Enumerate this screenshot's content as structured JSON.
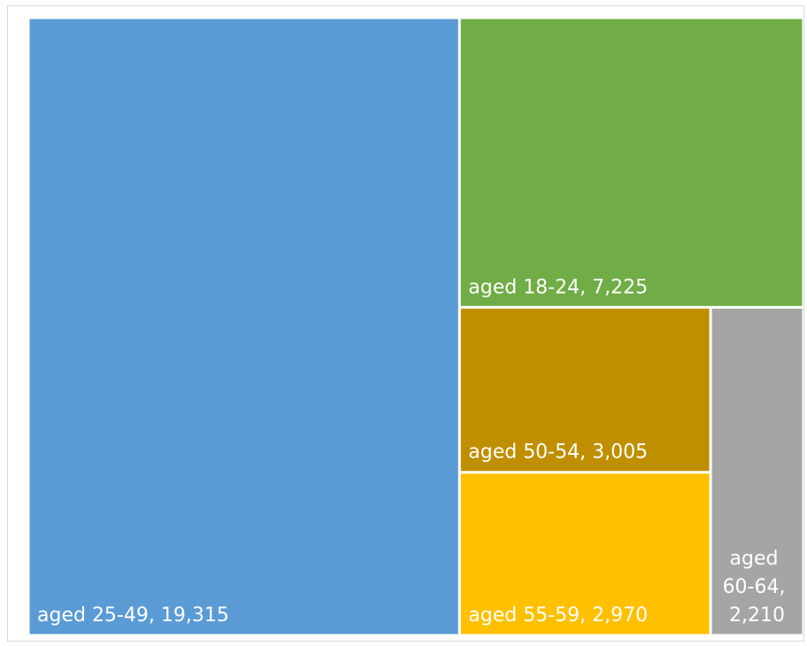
{
  "chart_data": {
    "type": "treemap",
    "values": [
      19315,
      7225,
      3005,
      2970,
      2210
    ],
    "value_labels": [
      "aged 25-49, 19,315",
      "aged 18-24, 7,225",
      "aged 50-54, 3,005",
      "aged 55-59, 2,970",
      "aged 60-64, 2,210"
    ],
    "colors": [
      "#5b9bd5",
      "#70ad47",
      "#bf8f00",
      "#ffc000",
      "#a5a5a5"
    ]
  }
}
